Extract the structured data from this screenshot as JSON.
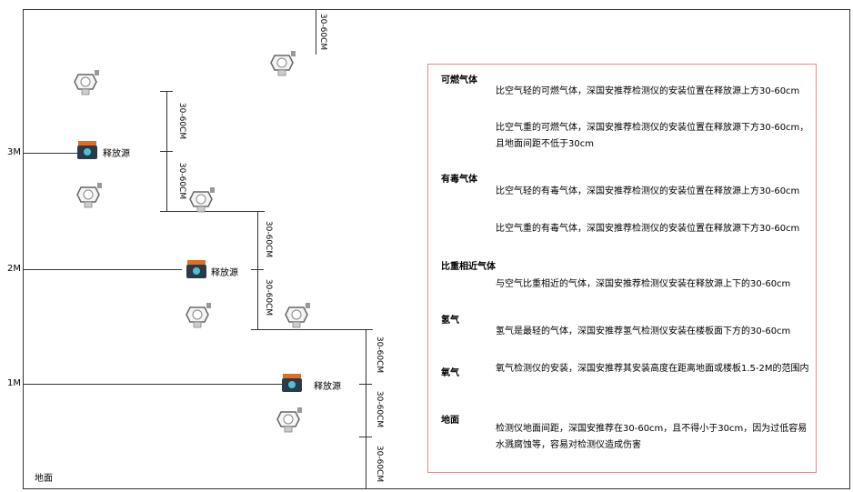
{
  "levels": {
    "l3": "3M",
    "l2": "2M",
    "l1": "1M",
    "ground": "地面"
  },
  "dimension_label": "30-60CM",
  "source_label": "释放源",
  "panel": {
    "combustible": {
      "title": "可燃气体",
      "light": "比空气轻的可燃气体，深国安推荐检测仪的安装位置在释放源上方30-60cm",
      "heavy": "比空气重的可燃气体，深国安推荐检测仪的安装位置在释放源下方30-60cm，且地面间距不低于30cm"
    },
    "toxic": {
      "title": "有毒气体",
      "light": "比空气轻的有毒气体，深国安推荐检测仪的安装位置在释放源上方30-60cm",
      "heavy": "比空气重的有毒气体，深国安推荐检测仪的安装位置在释放源下方30-60cm"
    },
    "similar": {
      "title": "比重相近气体",
      "text": "与空气比重相近的气体，深国安推荐检测仪安装在释放源上下的30-60cm"
    },
    "hydrogen": {
      "title": "氢气",
      "text": "氢气是最轻的气体，深国安推荐氢气检测仪安装在楼板面下方的30-60cm"
    },
    "oxygen": {
      "title": "氧气",
      "text": "氧气检测仪的安装，深国安推荐其安装高度在距离地面或楼板1.5-2M的范围内"
    },
    "ground": {
      "title": "地面",
      "text": "检测仪地面间距，深国安推荐在30-60cm，且不得小于30cm，因为过低容易水溅腐蚀等，容易对检测仪造成伤害"
    }
  },
  "colors": {
    "border": "#e88a8a",
    "source": "#e07020"
  }
}
